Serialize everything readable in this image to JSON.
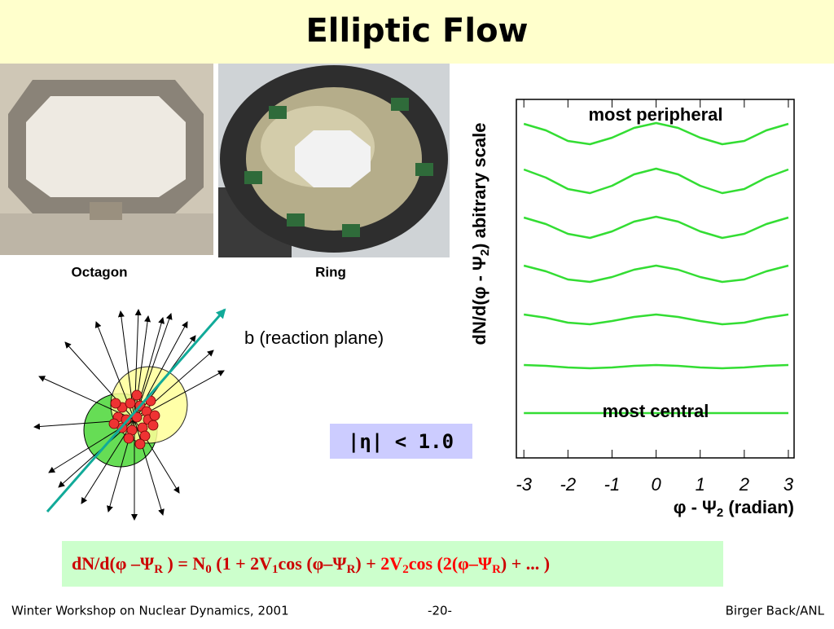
{
  "header": {
    "title": "Elliptic Flow"
  },
  "photos": [
    {
      "caption": "Octagon"
    },
    {
      "caption": "Ring"
    }
  ],
  "diagram": {
    "label": "b (reaction plane)"
  },
  "cut_box": {
    "text": "|η| < 1.0"
  },
  "chart_data": {
    "type": "line",
    "y_label": [
      "dN/d(φ - Ψ",
      "2",
      ") abitrary scale"
    ],
    "x_label": [
      "φ - Ψ",
      "2",
      " (radian)"
    ],
    "annotations": [
      "most peripheral",
      "most central"
    ],
    "x": [
      -3,
      -2.5,
      -2,
      -1.5,
      -1,
      -0.5,
      0,
      0.5,
      1,
      1.5,
      2,
      2.5,
      3
    ],
    "xlim": [
      -3.17,
      3.13
    ],
    "ylim": [
      0,
      440
    ],
    "xticks": [
      -3,
      -2,
      -1,
      0,
      1,
      2,
      3
    ],
    "grid": false,
    "series": [
      {
        "color": "#33dd33",
        "values": [
          410,
          402,
          389,
          385,
          393,
          405,
          411,
          405,
          393,
          385,
          389,
          402,
          410
        ]
      },
      {
        "color": "#33dd33",
        "values": [
          354,
          344,
          330,
          325,
          334,
          348,
          355,
          348,
          334,
          325,
          330,
          344,
          354
        ]
      },
      {
        "color": "#33dd33",
        "values": [
          295,
          287,
          275,
          270,
          278,
          290,
          296,
          290,
          278,
          270,
          275,
          287,
          295
        ]
      },
      {
        "color": "#33dd33",
        "values": [
          236,
          229,
          219,
          216,
          222,
          231,
          236,
          231,
          222,
          216,
          219,
          229,
          236
        ]
      },
      {
        "color": "#33dd33",
        "values": [
          176,
          172,
          166,
          164,
          168,
          173,
          176,
          173,
          168,
          164,
          166,
          172,
          176
        ]
      },
      {
        "color": "#33dd33",
        "values": [
          114,
          113,
          111,
          110,
          111,
          113,
          114,
          113,
          111,
          110,
          111,
          113,
          114
        ]
      },
      {
        "color": "#33dd33",
        "values": [
          55,
          55,
          55,
          55,
          55,
          55,
          55,
          55,
          55,
          55,
          55,
          55,
          55
        ]
      }
    ]
  },
  "formula": {
    "parts": [
      "dN/d(φ –Ψ",
      "R",
      " ) = N",
      "0",
      " (1 + 2V",
      "1",
      "cos (φ–Ψ",
      "R",
      ") + ",
      "2V",
      "2",
      "cos (2(φ–Ψ",
      "R",
      ") + ... )"
    ]
  },
  "footer": {
    "left": "Winter Workshop on Nuclear Dynamics, 2001",
    "center": "-20-",
    "right": "Birger Back/ANL"
  }
}
